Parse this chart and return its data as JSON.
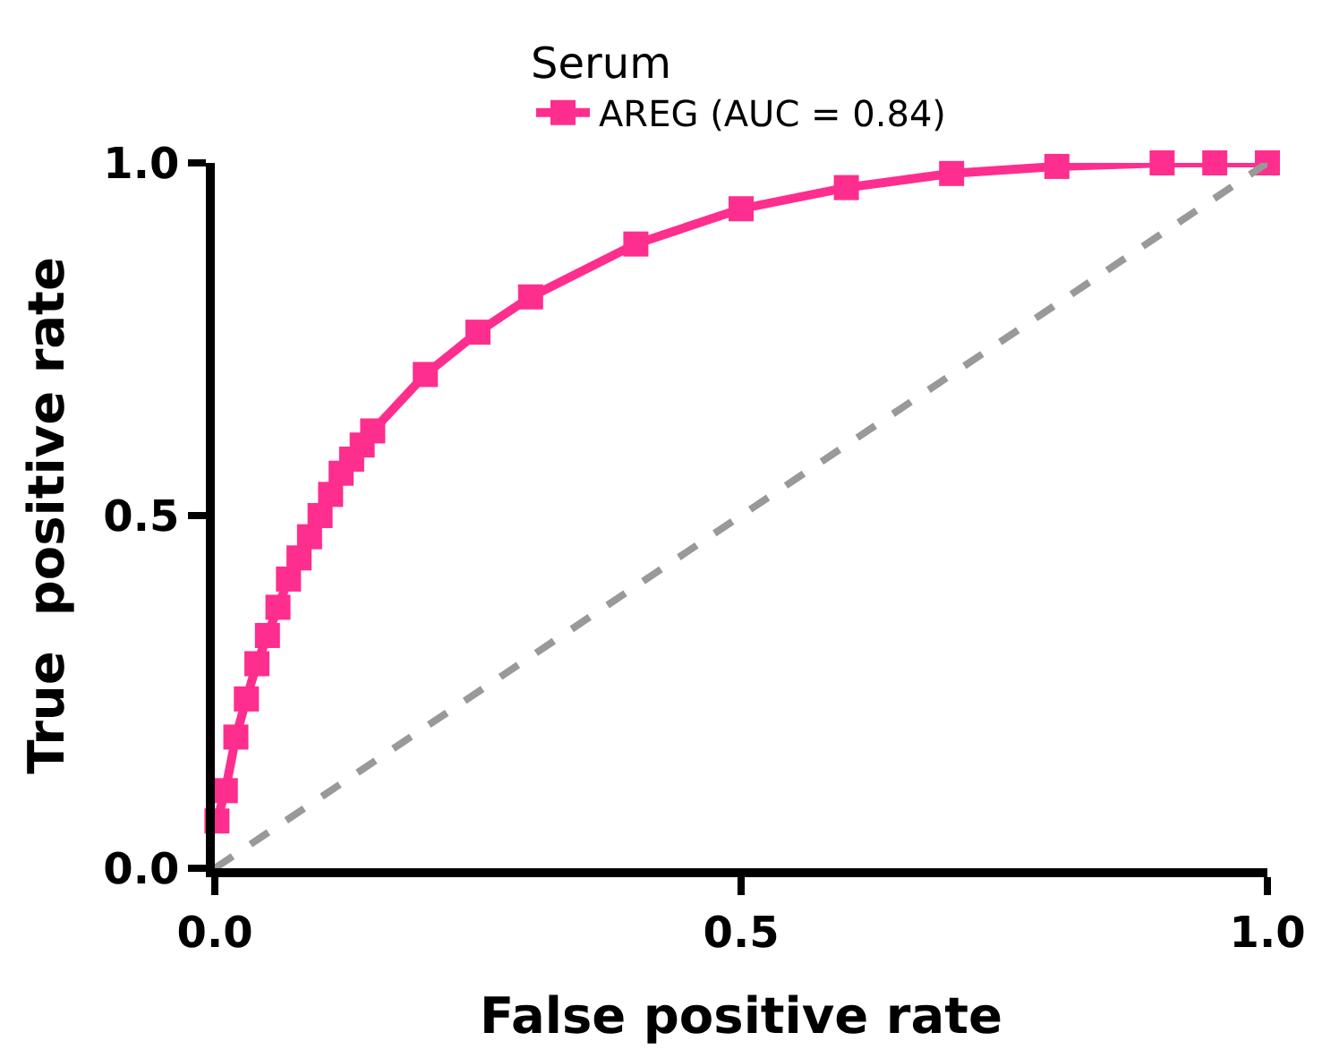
{
  "chart_data": {
    "type": "line",
    "xlabel": "False positive rate",
    "ylabel": "True  positive rate",
    "legend_title": "Serum",
    "legend": "top",
    "xlim": [
      0,
      1
    ],
    "ylim": [
      0,
      1
    ],
    "xticks": [
      {
        "value": 0,
        "label": "0.0"
      },
      0.5,
      {
        "value": 1,
        "label": "1.0"
      }
    ],
    "yticks": [
      {
        "value": 0,
        "label": "0.0"
      },
      0.5,
      {
        "value": 1,
        "label": "1.0"
      }
    ],
    "series": [
      {
        "name": "AREG (AUC = 0.84)",
        "color": "#fe2e8e",
        "marker": "square",
        "line_style": "solid",
        "x": [
          0.002,
          0.01,
          0.02,
          0.03,
          0.04,
          0.05,
          0.06,
          0.07,
          0.08,
          0.09,
          0.1,
          0.11,
          0.12,
          0.13,
          0.14,
          0.15,
          0.2,
          0.25,
          0.3,
          0.4,
          0.5,
          0.6,
          0.7,
          0.8,
          0.9,
          0.95,
          1.0
        ],
        "values": [
          0.067,
          0.11,
          0.186,
          0.24,
          0.29,
          0.33,
          0.37,
          0.41,
          0.44,
          0.47,
          0.5,
          0.53,
          0.56,
          0.58,
          0.6,
          0.62,
          0.7,
          0.76,
          0.81,
          0.885,
          0.935,
          0.965,
          0.985,
          0.995,
          1.0,
          1.0,
          1.0
        ]
      },
      {
        "color": "#999999",
        "marker": "none",
        "line_style": "dashed",
        "x": [
          0,
          1
        ],
        "values": [
          0,
          1
        ]
      }
    ]
  }
}
